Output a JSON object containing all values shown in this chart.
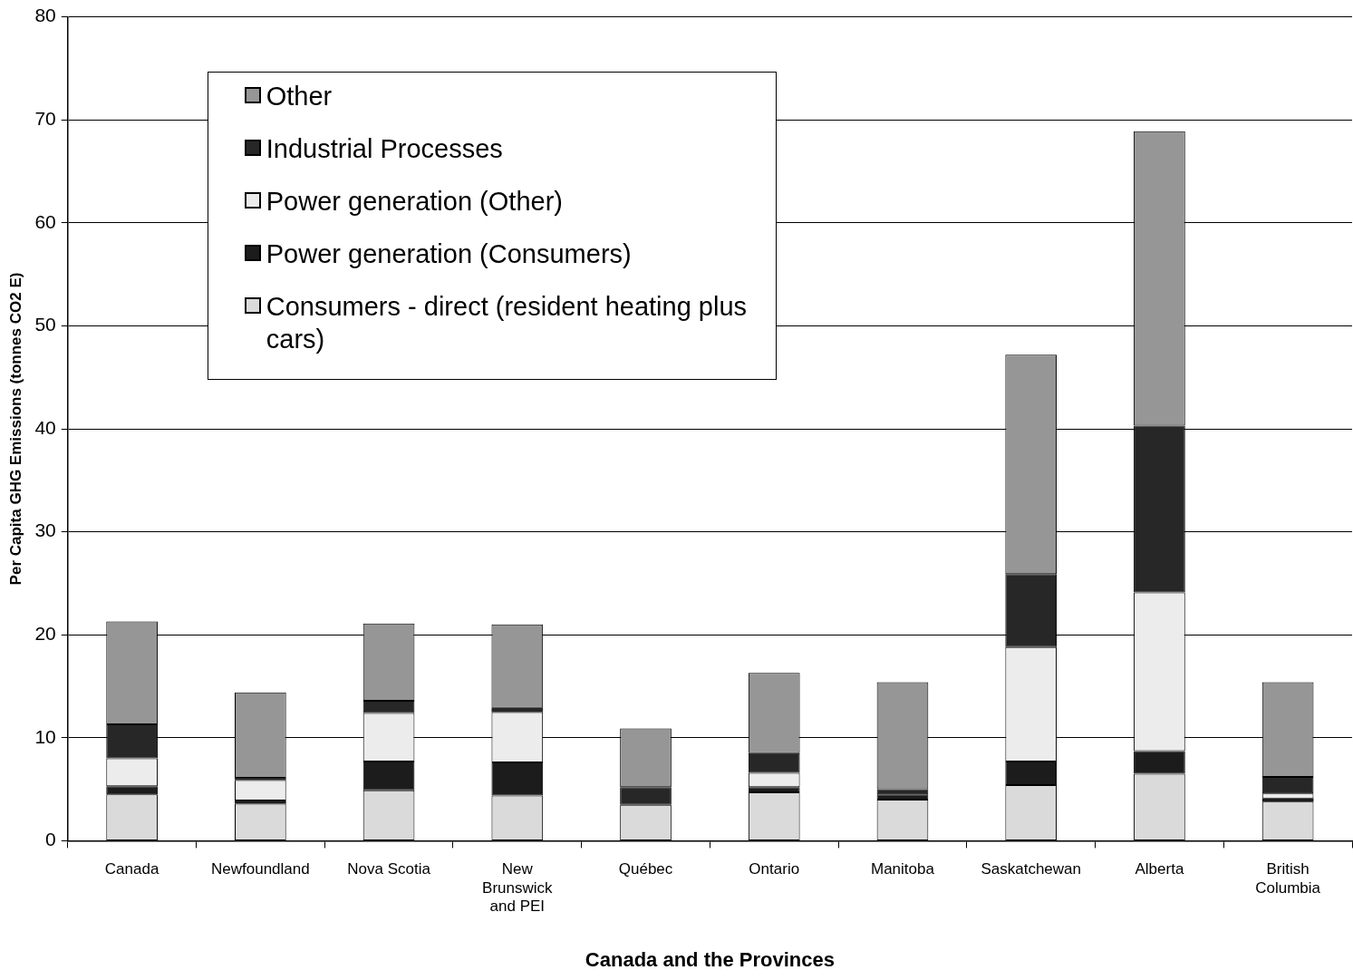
{
  "chart_data": {
    "type": "bar",
    "stacked": true,
    "xlabel": "Canada and the Provinces",
    "ylabel": "Per Capita GHG Emissions (tonnes CO2 E)",
    "categories": [
      "Canada",
      "Newfoundland",
      "Nova Scotia",
      "New Brunswick and PEI",
      "Québec",
      "Ontario",
      "Manitoba",
      "Saskatchewan",
      "Alberta",
      "British Columbia"
    ],
    "series": [
      {
        "name": "Consumers - direct (resident heating plus cars)",
        "color": "#dadada",
        "values": [
          4.5,
          3.6,
          4.9,
          4.4,
          3.5,
          4.7,
          4.0,
          5.4,
          6.5,
          3.8
        ]
      },
      {
        "name": "Power generation (Consumers)",
        "color": "#1c1c1c",
        "values": [
          0.8,
          0.3,
          2.8,
          3.2,
          0,
          0.5,
          0.5,
          2.3,
          2.2,
          0.3
        ]
      },
      {
        "name": "Power generation (Other)",
        "color": "#ececec",
        "values": [
          2.7,
          2.0,
          4.7,
          4.9,
          0,
          1.4,
          0,
          11.1,
          15.4,
          0.5
        ]
      },
      {
        "name": "Industrial Processes",
        "color": "#272727",
        "values": [
          3.3,
          0.2,
          1.2,
          0.4,
          1.7,
          1.9,
          0.5,
          7.1,
          16.2,
          1.6
        ]
      },
      {
        "name": "Other",
        "color": "#969696",
        "values": [
          10.0,
          8.3,
          7.5,
          8.1,
          5.7,
          7.8,
          10.4,
          21.3,
          28.6,
          9.2
        ]
      }
    ],
    "ylim": [
      0,
      80
    ],
    "yticks": [
      0,
      10,
      20,
      30,
      40,
      50,
      60,
      70,
      80
    ],
    "grid": "y",
    "legend": "top left"
  }
}
